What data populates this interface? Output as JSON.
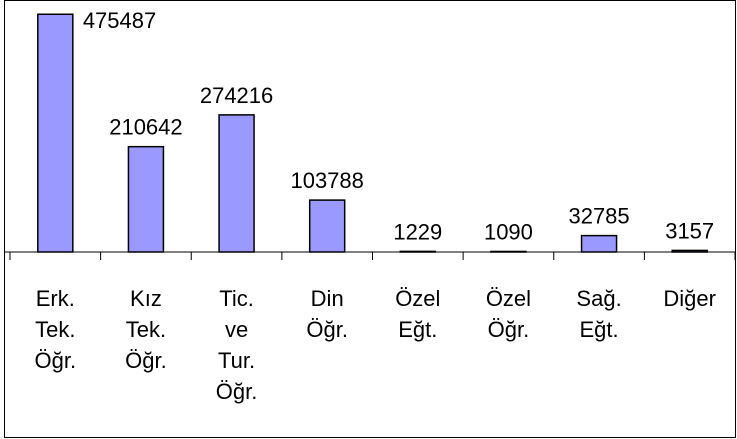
{
  "chart_data": {
    "type": "bar",
    "categories": [
      "Erk. Tek. Öğr.",
      "Kız Tek. Öğr.",
      "Tic. ve Tur. Öğr.",
      "Din Öğr.",
      "Özel Eğt.",
      "Özel Öğr.",
      "Sağ. Eğt.",
      "Diğer"
    ],
    "values": [
      475487,
      210642,
      274216,
      103788,
      1229,
      1090,
      32785,
      3157
    ],
    "color": "#9999ff",
    "ylim": [
      0,
      500000
    ]
  }
}
